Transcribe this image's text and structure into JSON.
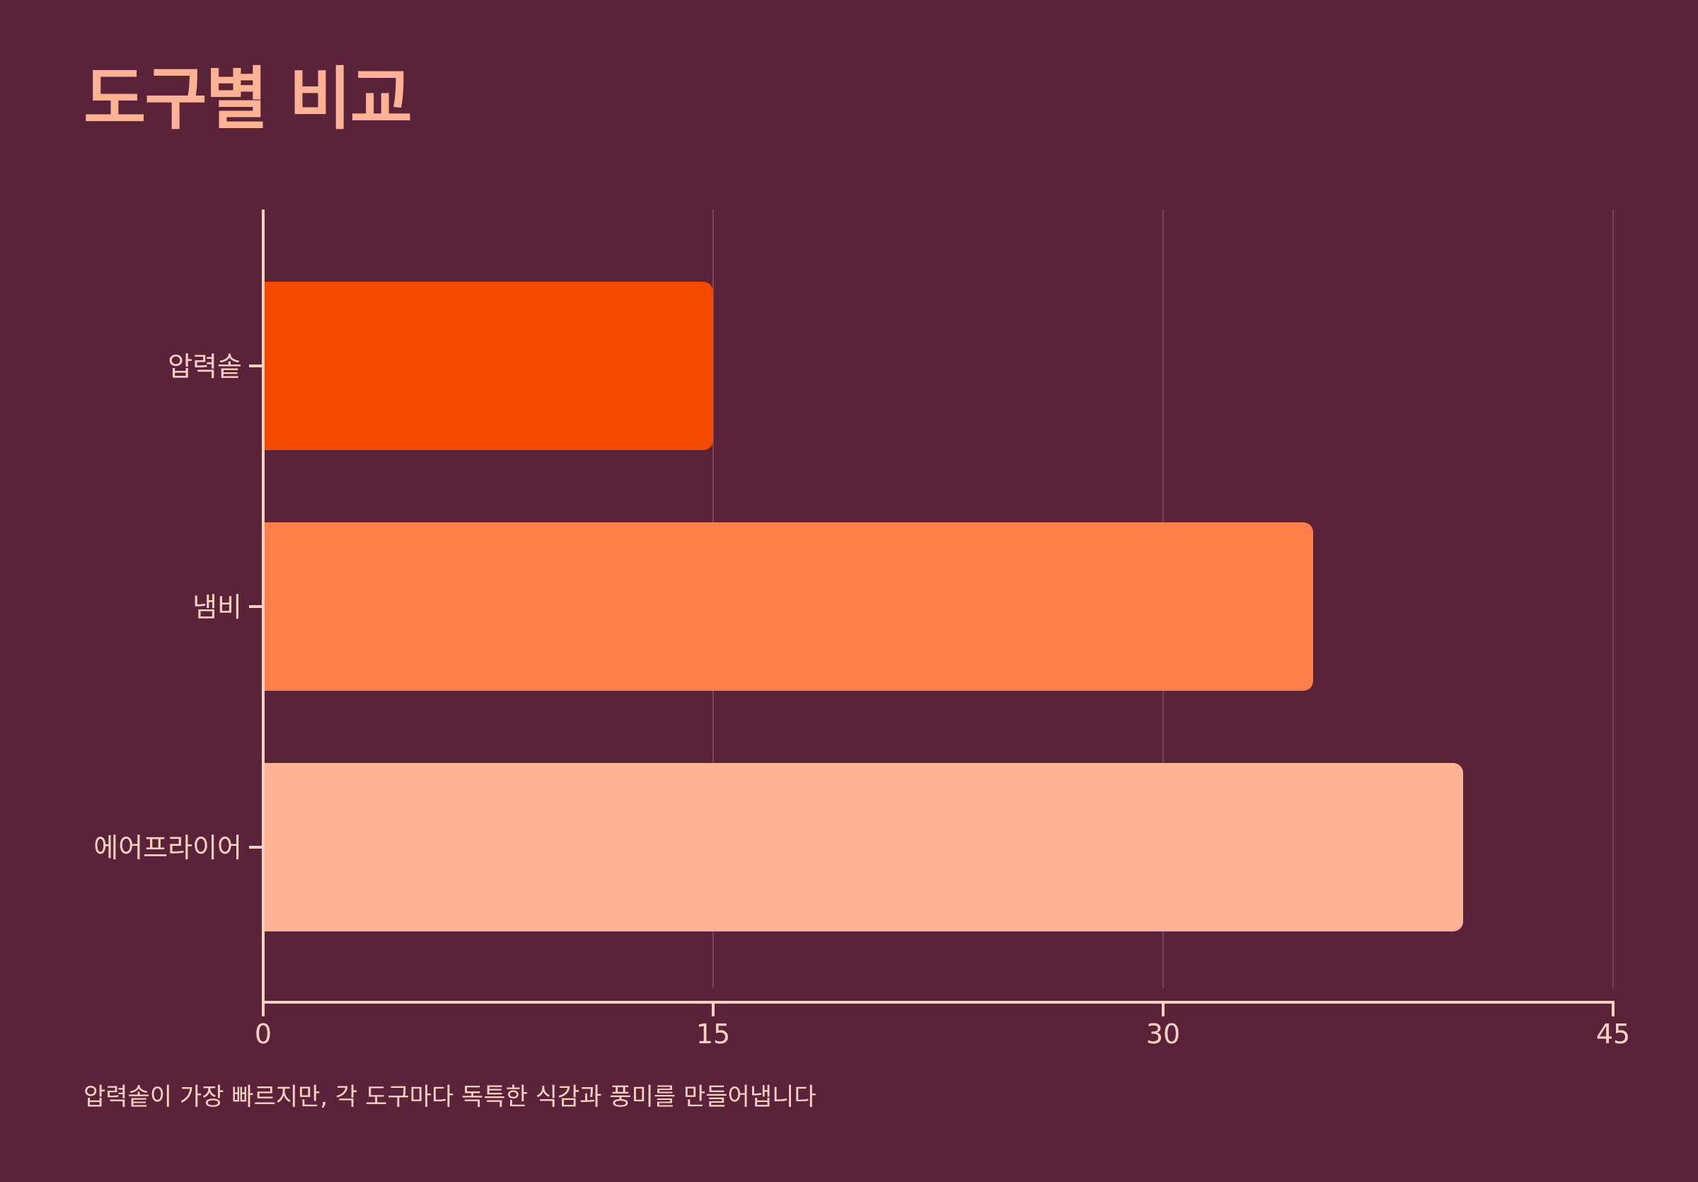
{
  "title": "도구별 비교",
  "footnote": "압력솥이 가장 빠르지만, 각 도구마다 독특한 식감과 풍미를 만들어냅니다",
  "colors": {
    "background": "#5b233a",
    "title": "#ffb294",
    "axis": "#ffd3c2",
    "grid": "#7a4558"
  },
  "chart_data": {
    "type": "bar",
    "orientation": "horizontal",
    "categories": [
      "압력솥",
      "냄비",
      "에어프라이어"
    ],
    "values": [
      15,
      35,
      40
    ],
    "bar_colors": [
      "#f44a00",
      "#ff7f4a",
      "#ffb294"
    ],
    "xlim": [
      0,
      45
    ],
    "xticks": [
      0,
      15,
      30,
      45
    ],
    "grid": true,
    "legend": false
  }
}
